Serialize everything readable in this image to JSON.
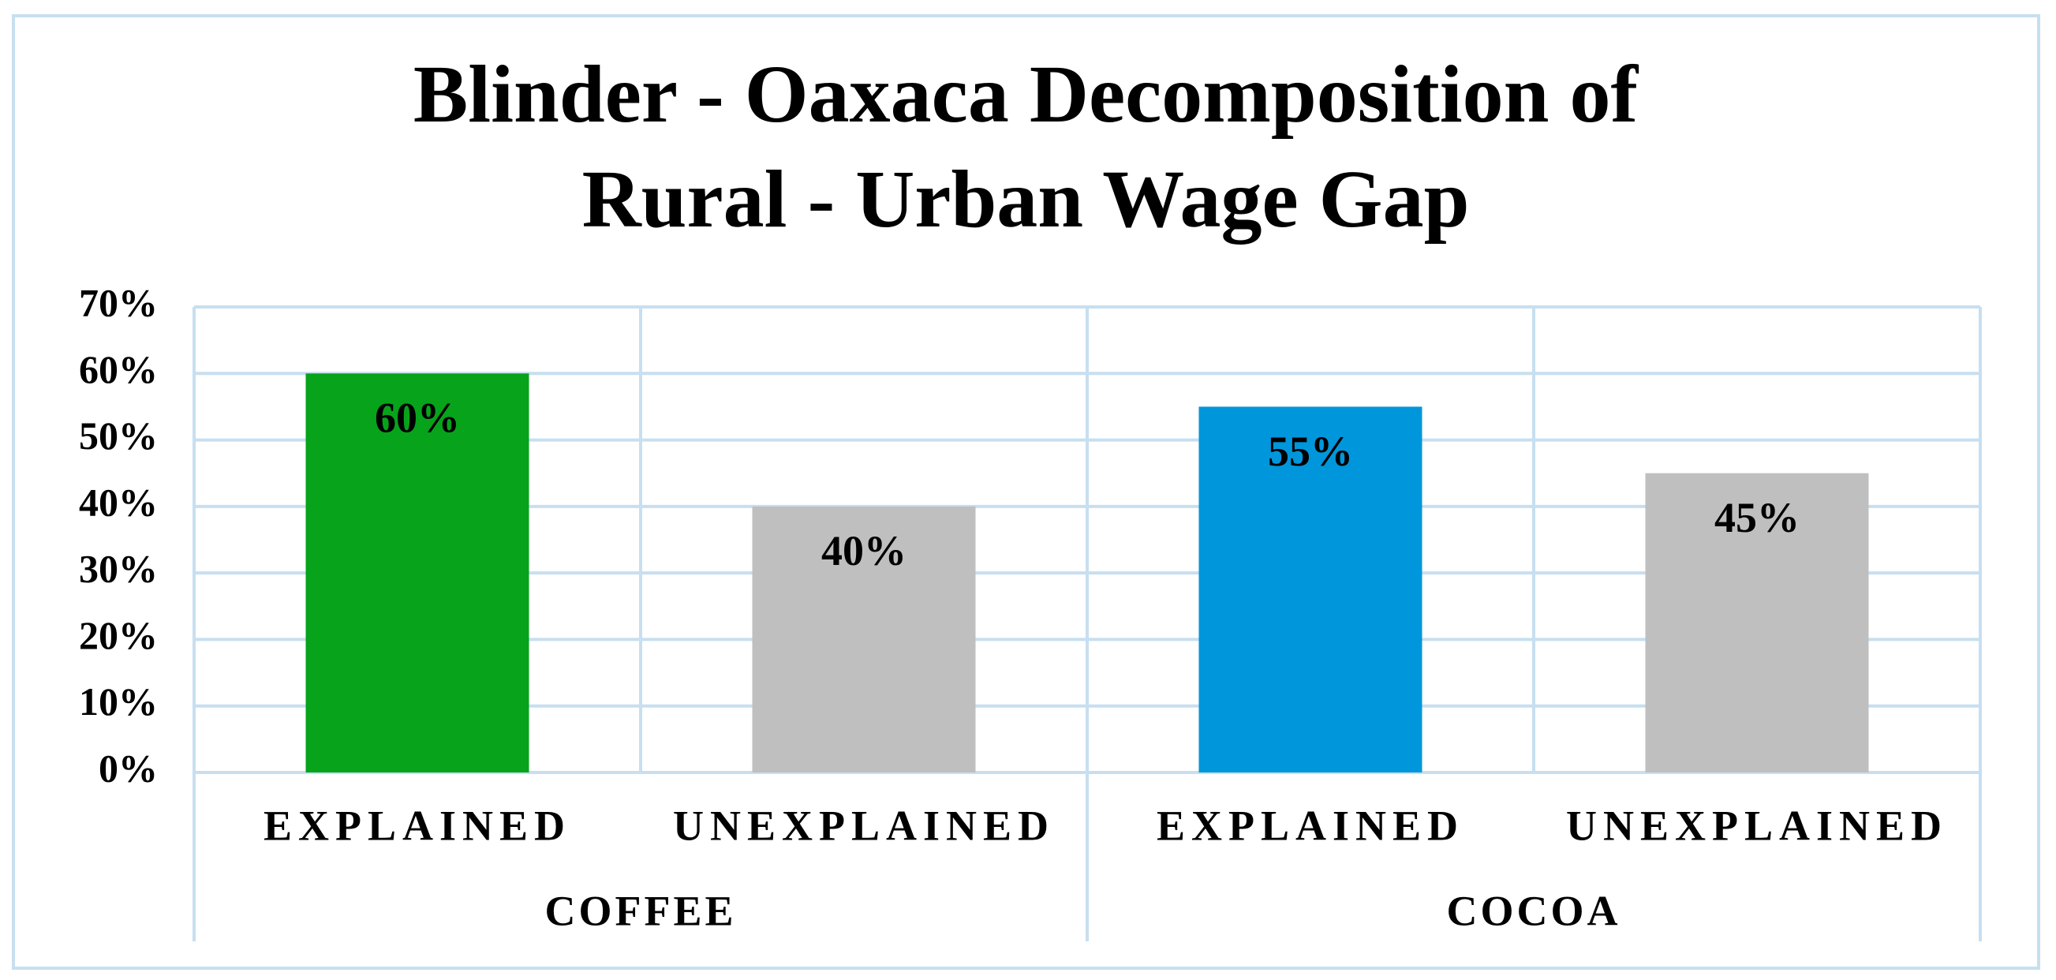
{
  "chart_data": {
    "type": "bar",
    "title": [
      "Blinder - Oaxaca Decomposition of",
      "Rural - Urban Wage Gap"
    ],
    "groups": [
      {
        "name": "COFFEE",
        "categories": [
          "EXPLAINED",
          "UNEXPLAINED"
        ],
        "values": [
          60,
          40
        ],
        "value_labels": [
          "60%",
          "40%"
        ],
        "colors": [
          "#07a31b",
          "#bfbfbf"
        ]
      },
      {
        "name": "COCOA",
        "categories": [
          "EXPLAINED",
          "UNEXPLAINED"
        ],
        "values": [
          55,
          45
        ],
        "value_labels": [
          "55%",
          "45%"
        ],
        "colors": [
          "#0096db",
          "#bfbfbf"
        ]
      }
    ],
    "ylim": [
      0,
      70
    ],
    "yticks": [
      {
        "value": 0,
        "label": "0%"
      },
      {
        "value": 10,
        "label": "10%"
      },
      {
        "value": 20,
        "label": "20%"
      },
      {
        "value": 30,
        "label": "30%"
      },
      {
        "value": 40,
        "label": "40%"
      },
      {
        "value": 50,
        "label": "50%"
      },
      {
        "value": 60,
        "label": "60%"
      },
      {
        "value": 70,
        "label": "70%"
      }
    ],
    "grid": true
  }
}
